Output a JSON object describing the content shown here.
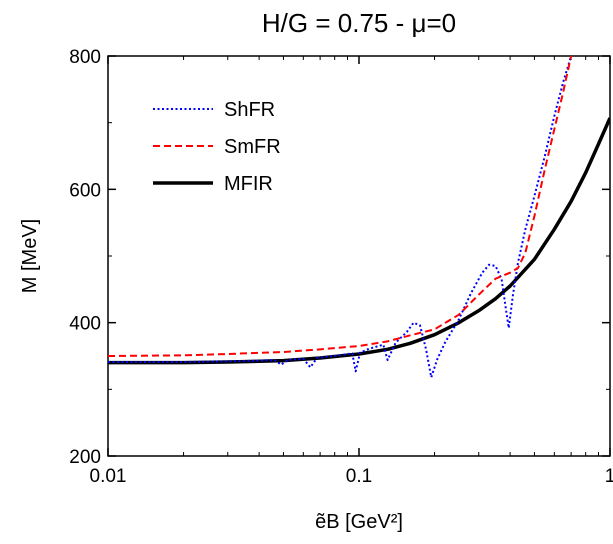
{
  "chart_data": {
    "type": "line",
    "title": "H/G = 0.75 - μ=0",
    "xlabel": "ẽB [GeV²]",
    "ylabel": "M [MeV]",
    "xscale": "log",
    "xlim": [
      0.01,
      1
    ],
    "ylim": [
      200,
      800
    ],
    "x_ticks": [
      0.01,
      0.1,
      1
    ],
    "x_tick_labels": [
      "0.01",
      "0.1",
      "1"
    ],
    "y_ticks": [
      200,
      400,
      600,
      800
    ],
    "y_tick_labels": [
      "200",
      "400",
      "600",
      "800"
    ],
    "grid": false,
    "legend_position": "top-left",
    "series": [
      {
        "name": "ShFR",
        "color": "#0000ff",
        "style": "dotted",
        "x": [
          0.01,
          0.02,
          0.03,
          0.04,
          0.046,
          0.049,
          0.052,
          0.06,
          0.064,
          0.068,
          0.08,
          0.094,
          0.097,
          0.101,
          0.11,
          0.125,
          0.13,
          0.14,
          0.155,
          0.165,
          0.175,
          0.185,
          0.194,
          0.205,
          0.22,
          0.25,
          0.28,
          0.31,
          0.33,
          0.35,
          0.37,
          0.385,
          0.395,
          0.41,
          0.43,
          0.46,
          0.5,
          0.55,
          0.6,
          0.65,
          0.7,
          0.72
        ],
        "values": [
          341,
          341,
          342,
          343,
          344,
          337,
          344,
          346,
          333,
          347,
          350,
          354,
          327,
          355,
          361,
          367,
          344,
          370,
          386,
          400,
          396,
          360,
          318,
          345,
          370,
          405,
          445,
          475,
          487,
          485,
          465,
          420,
          392,
          440,
          490,
          540,
          590,
          650,
          710,
          760,
          800,
          810
        ]
      },
      {
        "name": "SmFR",
        "color": "#ff0000",
        "style": "dashed",
        "x": [
          0.01,
          0.02,
          0.03,
          0.05,
          0.07,
          0.1,
          0.13,
          0.16,
          0.2,
          0.25,
          0.3,
          0.35,
          0.4,
          0.43,
          0.46,
          0.5,
          0.55,
          0.6,
          0.65,
          0.7,
          0.72
        ],
        "values": [
          350,
          351,
          353,
          356,
          360,
          365,
          372,
          381,
          390,
          412,
          442,
          466,
          475,
          482,
          505,
          560,
          630,
          690,
          745,
          800,
          810
        ]
      },
      {
        "name": "MFIR",
        "color": "#000000",
        "style": "solid",
        "x": [
          0.01,
          0.02,
          0.03,
          0.05,
          0.07,
          0.1,
          0.13,
          0.16,
          0.2,
          0.25,
          0.3,
          0.35,
          0.4,
          0.5,
          0.6,
          0.7,
          0.8,
          0.9,
          1.0
        ],
        "values": [
          340,
          340,
          341,
          343,
          347,
          353,
          360,
          369,
          382,
          400,
          418,
          436,
          455,
          495,
          540,
          582,
          625,
          668,
          707
        ]
      }
    ]
  }
}
